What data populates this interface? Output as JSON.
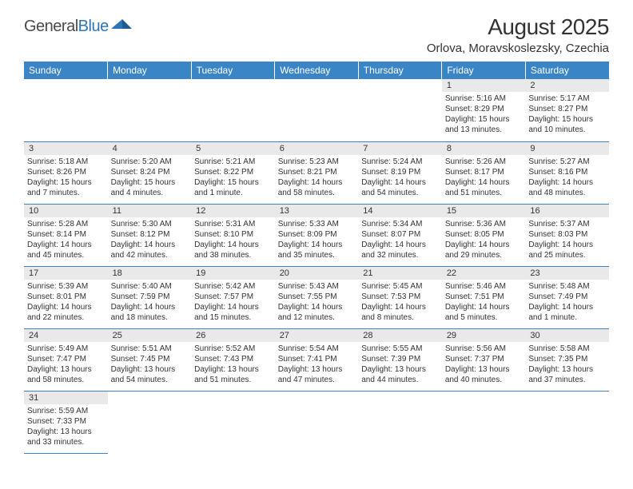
{
  "logo": {
    "text1": "General",
    "text2": "Blue"
  },
  "title": "August 2025",
  "location": "Orlova, Moravskoslezsky, Czechia",
  "colors": {
    "header_bg": "#3a85c6",
    "header_fg": "#ffffff",
    "daynum_bg": "#e9e9e9",
    "border": "#3a85c6",
    "logo_gray": "#4a4a4a",
    "logo_blue": "#2d75b5"
  },
  "weekdays": [
    "Sunday",
    "Monday",
    "Tuesday",
    "Wednesday",
    "Thursday",
    "Friday",
    "Saturday"
  ],
  "grid": [
    [
      null,
      null,
      null,
      null,
      null,
      {
        "n": "1",
        "sr": "5:16 AM",
        "ss": "8:29 PM",
        "dl": "15 hours and 13 minutes."
      },
      {
        "n": "2",
        "sr": "5:17 AM",
        "ss": "8:27 PM",
        "dl": "15 hours and 10 minutes."
      }
    ],
    [
      {
        "n": "3",
        "sr": "5:18 AM",
        "ss": "8:26 PM",
        "dl": "15 hours and 7 minutes."
      },
      {
        "n": "4",
        "sr": "5:20 AM",
        "ss": "8:24 PM",
        "dl": "15 hours and 4 minutes."
      },
      {
        "n": "5",
        "sr": "5:21 AM",
        "ss": "8:22 PM",
        "dl": "15 hours and 1 minute."
      },
      {
        "n": "6",
        "sr": "5:23 AM",
        "ss": "8:21 PM",
        "dl": "14 hours and 58 minutes."
      },
      {
        "n": "7",
        "sr": "5:24 AM",
        "ss": "8:19 PM",
        "dl": "14 hours and 54 minutes."
      },
      {
        "n": "8",
        "sr": "5:26 AM",
        "ss": "8:17 PM",
        "dl": "14 hours and 51 minutes."
      },
      {
        "n": "9",
        "sr": "5:27 AM",
        "ss": "8:16 PM",
        "dl": "14 hours and 48 minutes."
      }
    ],
    [
      {
        "n": "10",
        "sr": "5:28 AM",
        "ss": "8:14 PM",
        "dl": "14 hours and 45 minutes."
      },
      {
        "n": "11",
        "sr": "5:30 AM",
        "ss": "8:12 PM",
        "dl": "14 hours and 42 minutes."
      },
      {
        "n": "12",
        "sr": "5:31 AM",
        "ss": "8:10 PM",
        "dl": "14 hours and 38 minutes."
      },
      {
        "n": "13",
        "sr": "5:33 AM",
        "ss": "8:09 PM",
        "dl": "14 hours and 35 minutes."
      },
      {
        "n": "14",
        "sr": "5:34 AM",
        "ss": "8:07 PM",
        "dl": "14 hours and 32 minutes."
      },
      {
        "n": "15",
        "sr": "5:36 AM",
        "ss": "8:05 PM",
        "dl": "14 hours and 29 minutes."
      },
      {
        "n": "16",
        "sr": "5:37 AM",
        "ss": "8:03 PM",
        "dl": "14 hours and 25 minutes."
      }
    ],
    [
      {
        "n": "17",
        "sr": "5:39 AM",
        "ss": "8:01 PM",
        "dl": "14 hours and 22 minutes."
      },
      {
        "n": "18",
        "sr": "5:40 AM",
        "ss": "7:59 PM",
        "dl": "14 hours and 18 minutes."
      },
      {
        "n": "19",
        "sr": "5:42 AM",
        "ss": "7:57 PM",
        "dl": "14 hours and 15 minutes."
      },
      {
        "n": "20",
        "sr": "5:43 AM",
        "ss": "7:55 PM",
        "dl": "14 hours and 12 minutes."
      },
      {
        "n": "21",
        "sr": "5:45 AM",
        "ss": "7:53 PM",
        "dl": "14 hours and 8 minutes."
      },
      {
        "n": "22",
        "sr": "5:46 AM",
        "ss": "7:51 PM",
        "dl": "14 hours and 5 minutes."
      },
      {
        "n": "23",
        "sr": "5:48 AM",
        "ss": "7:49 PM",
        "dl": "14 hours and 1 minute."
      }
    ],
    [
      {
        "n": "24",
        "sr": "5:49 AM",
        "ss": "7:47 PM",
        "dl": "13 hours and 58 minutes."
      },
      {
        "n": "25",
        "sr": "5:51 AM",
        "ss": "7:45 PM",
        "dl": "13 hours and 54 minutes."
      },
      {
        "n": "26",
        "sr": "5:52 AM",
        "ss": "7:43 PM",
        "dl": "13 hours and 51 minutes."
      },
      {
        "n": "27",
        "sr": "5:54 AM",
        "ss": "7:41 PM",
        "dl": "13 hours and 47 minutes."
      },
      {
        "n": "28",
        "sr": "5:55 AM",
        "ss": "7:39 PM",
        "dl": "13 hours and 44 minutes."
      },
      {
        "n": "29",
        "sr": "5:56 AM",
        "ss": "7:37 PM",
        "dl": "13 hours and 40 minutes."
      },
      {
        "n": "30",
        "sr": "5:58 AM",
        "ss": "7:35 PM",
        "dl": "13 hours and 37 minutes."
      }
    ],
    [
      {
        "n": "31",
        "sr": "5:59 AM",
        "ss": "7:33 PM",
        "dl": "13 hours and 33 minutes."
      },
      null,
      null,
      null,
      null,
      null,
      null
    ]
  ]
}
